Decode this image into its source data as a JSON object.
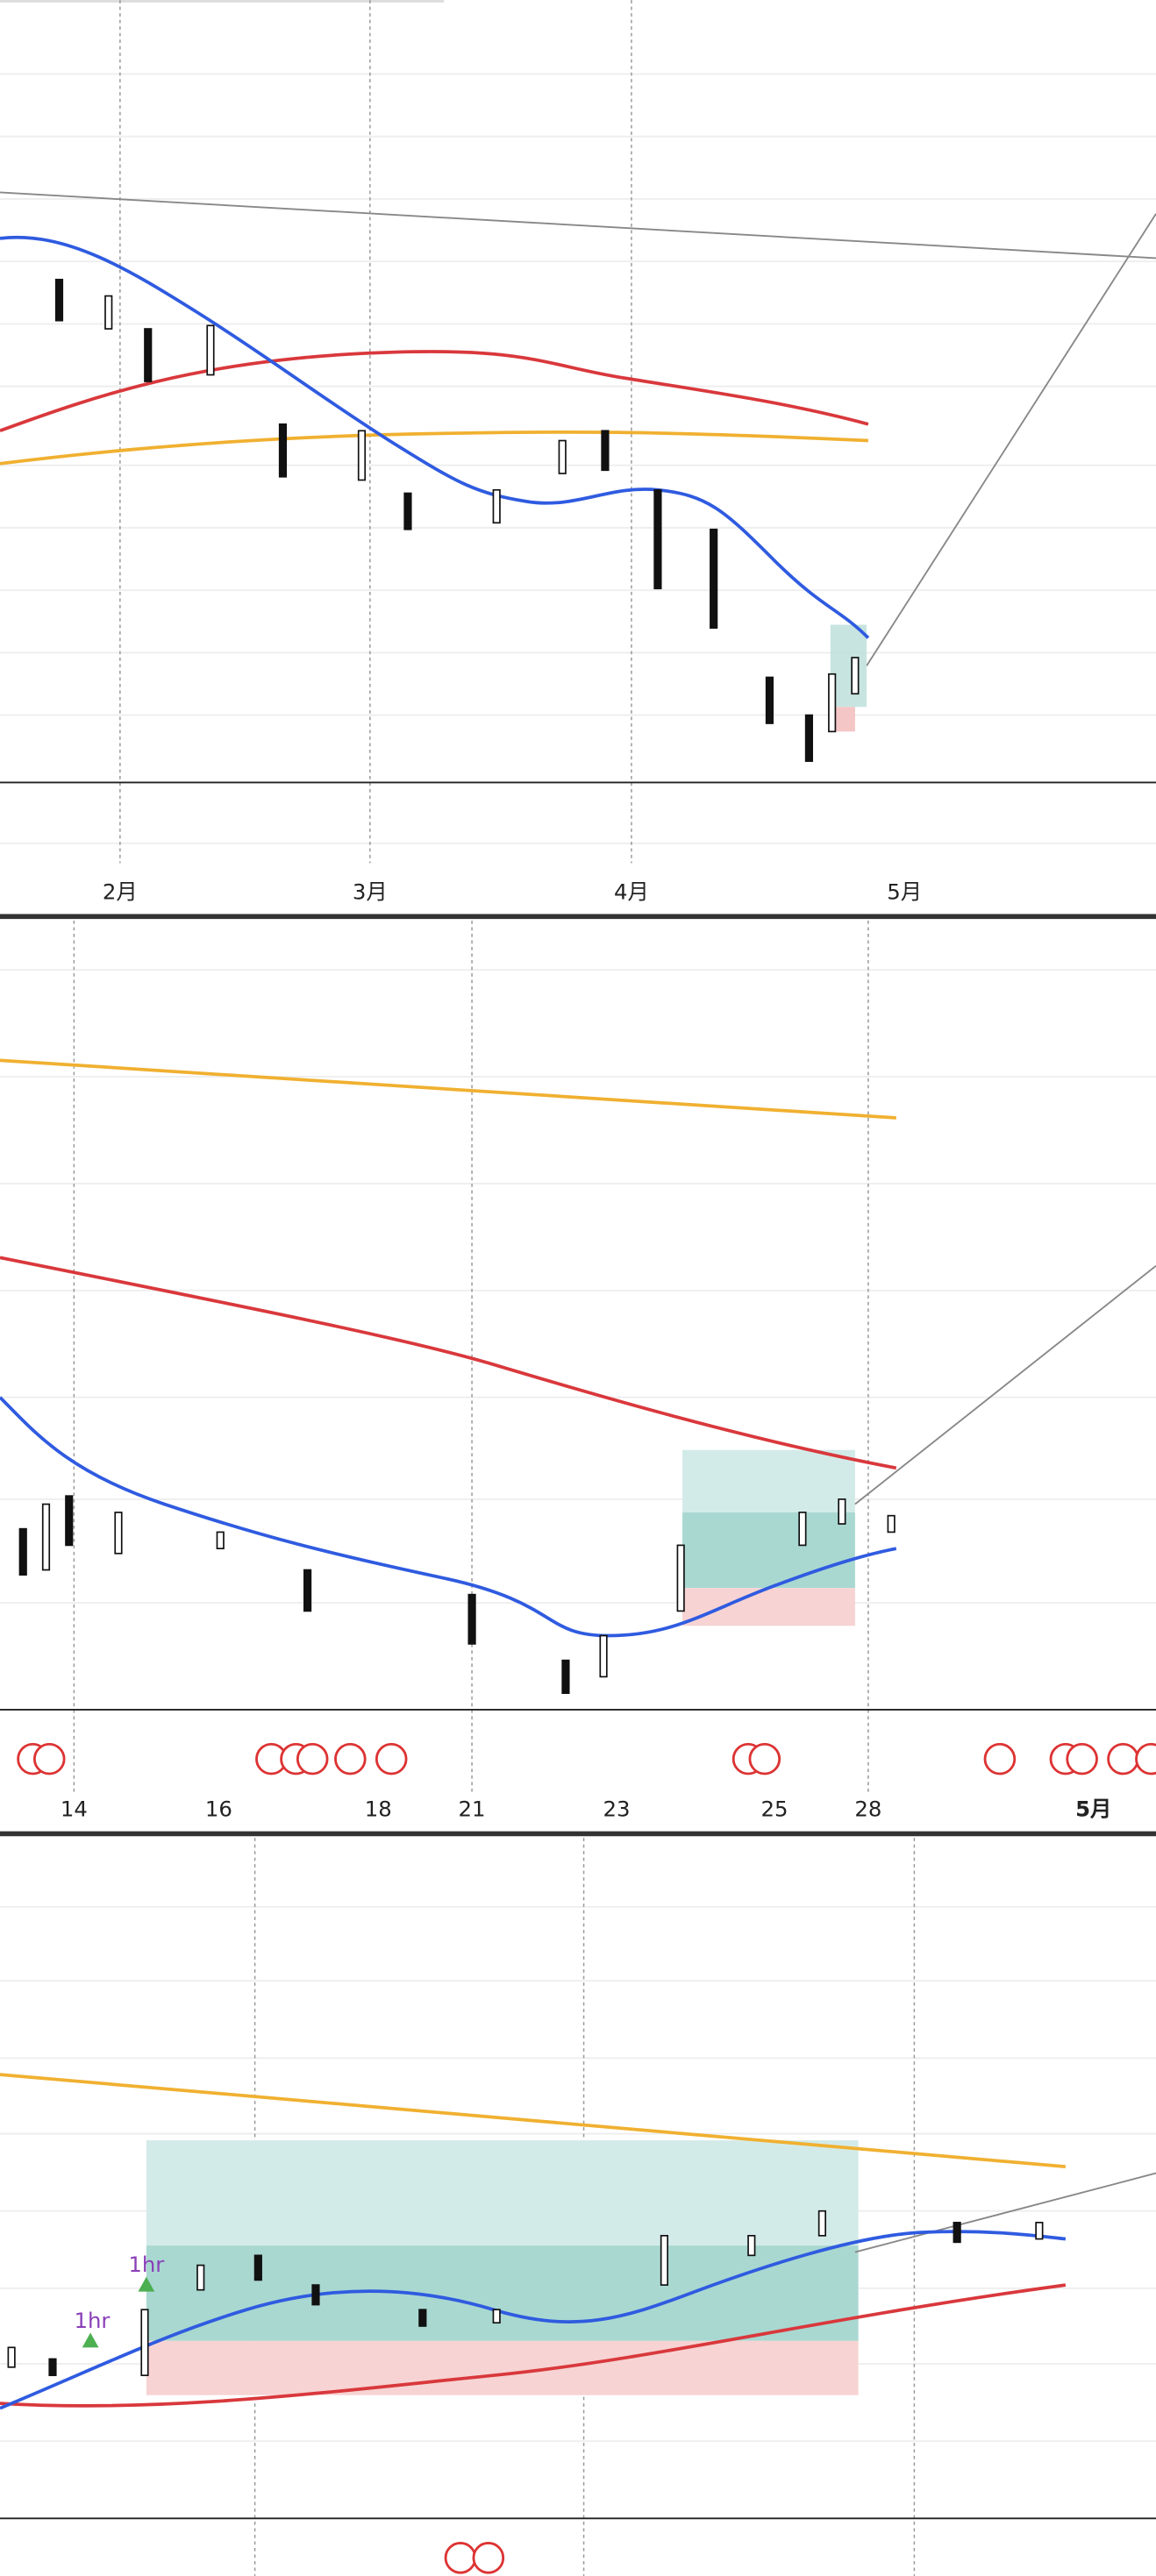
{
  "panels": [
    {
      "x_labels": [
        "2月",
        "3月",
        "4月",
        "5月"
      ]
    },
    {
      "x_labels": [
        "14",
        "16",
        "18",
        "21",
        "23",
        "25",
        "28",
        "5月"
      ]
    },
    {
      "annotations": [
        "1hr",
        "1hr"
      ]
    }
  ]
}
